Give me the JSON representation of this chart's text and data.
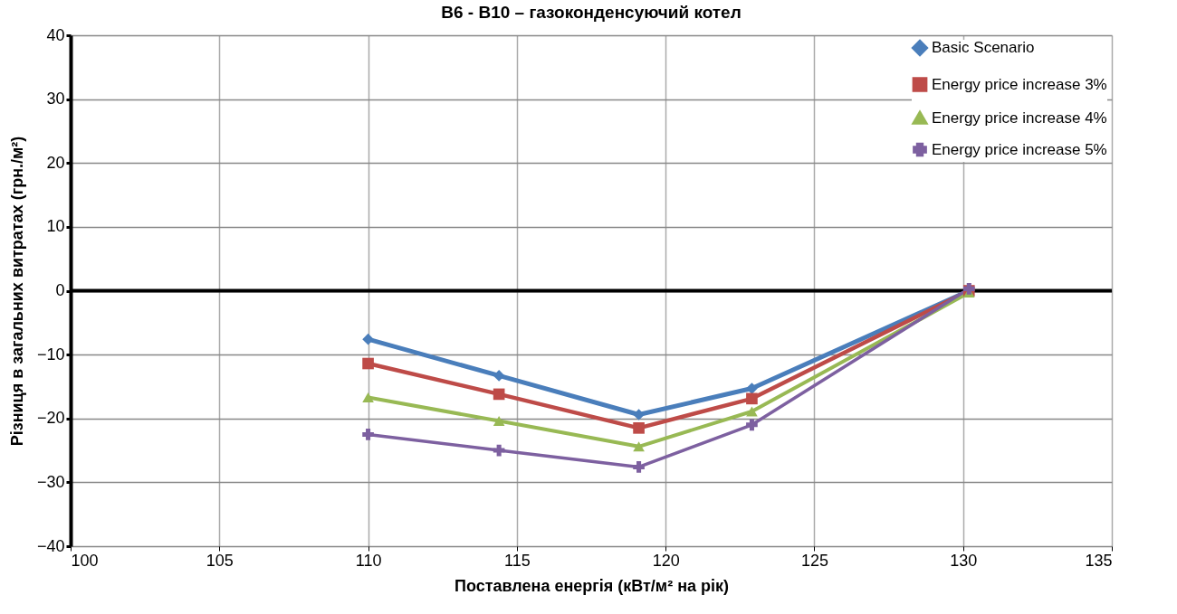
{
  "chart_data": {
    "type": "line",
    "title": "В6 - В10 – газоконденсуючий котел",
    "xlabel": "Поставлена енергія (кВт/м² на рік)",
    "ylabel": "Різниця в загальних витратах (грн./м²)",
    "x": [
      110.0,
      114.4,
      119.1,
      122.9,
      130.2
    ],
    "series": [
      {
        "name": "Basic Scenario",
        "color": "#4a7ebb",
        "marker": "diamond",
        "values": [
          -7.6,
          -13.3,
          -19.4,
          -15.3,
          0
        ]
      },
      {
        "name": "Energy price increase 3%",
        "color": "#be4b48",
        "marker": "square",
        "values": [
          -11.4,
          -16.2,
          -21.5,
          -16.9,
          0
        ]
      },
      {
        "name": "Energy price increase 4%",
        "color": "#98b954",
        "marker": "triangle",
        "values": [
          -16.7,
          -20.4,
          -24.4,
          -18.9,
          -0.3
        ]
      },
      {
        "name": "Energy price increase 5%",
        "color": "#7d60a0",
        "marker": "cross",
        "values": [
          -22.5,
          -25,
          -27.6,
          -21,
          0.3
        ]
      }
    ],
    "xlim": [
      100,
      135
    ],
    "xticks": [
      100,
      105,
      110,
      115,
      120,
      125,
      130,
      135
    ],
    "ylim": [
      -40,
      40
    ],
    "yticks": [
      -40,
      -30,
      -20,
      -10,
      0,
      10,
      20,
      30,
      40
    ],
    "ref_lines": [
      {
        "axis": "y",
        "value": 0,
        "color": "#000000"
      }
    ],
    "grid": true,
    "legend": "top right"
  }
}
